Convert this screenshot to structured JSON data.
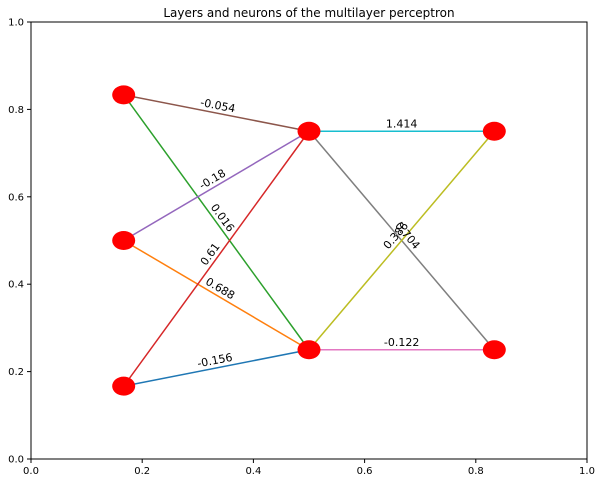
{
  "chart_data": {
    "type": "network",
    "title": "Layers and neurons of the multilayer perceptron",
    "xlim": [
      0,
      1
    ],
    "ylim": [
      0,
      1
    ],
    "xticks": [
      "0.0",
      "0.2",
      "0.4",
      "0.6",
      "0.8",
      "1.0"
    ],
    "yticks": [
      "0.0",
      "0.2",
      "0.4",
      "0.6",
      "0.8",
      "1.0"
    ],
    "node_color": "#ff0000",
    "nodes": [
      {
        "x": 0.1667,
        "y": 0.8333
      },
      {
        "x": 0.1667,
        "y": 0.5
      },
      {
        "x": 0.1667,
        "y": 0.1667
      },
      {
        "x": 0.5,
        "y": 0.75
      },
      {
        "x": 0.5,
        "y": 0.25
      },
      {
        "x": 0.8333,
        "y": 0.75
      },
      {
        "x": 0.8333,
        "y": 0.25
      }
    ],
    "edges": [
      {
        "from": 0,
        "to": 3,
        "weight": "-0.054",
        "color": "#8c564b"
      },
      {
        "from": 0,
        "to": 4,
        "weight": "0.016",
        "color": "#2ca02c"
      },
      {
        "from": 1,
        "to": 3,
        "weight": "-0.18",
        "color": "#9467bd"
      },
      {
        "from": 1,
        "to": 4,
        "weight": "0.688",
        "color": "#ff7f0e"
      },
      {
        "from": 2,
        "to": 3,
        "weight": "0.61",
        "color": "#d62728"
      },
      {
        "from": 2,
        "to": 4,
        "weight": "-0.156",
        "color": "#1f77b4"
      },
      {
        "from": 3,
        "to": 5,
        "weight": "1.414",
        "color": "#17becf"
      },
      {
        "from": 3,
        "to": 6,
        "weight": "0.704",
        "color": "#7f7f7f"
      },
      {
        "from": 4,
        "to": 5,
        "weight": "0.386",
        "color": "#bcbd22"
      },
      {
        "from": 4,
        "to": 6,
        "weight": "-0.122",
        "color": "#e377c2"
      }
    ]
  }
}
